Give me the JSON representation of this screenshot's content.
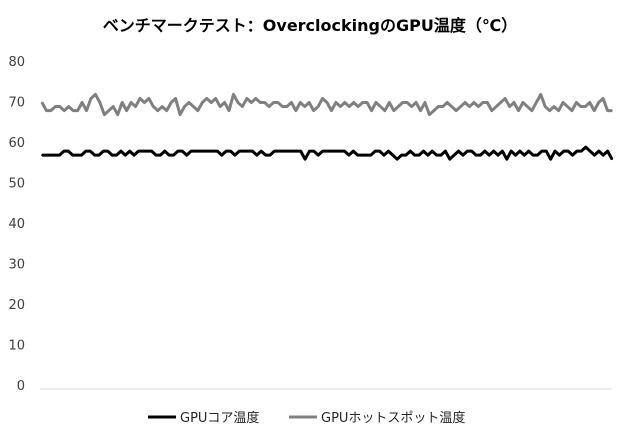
{
  "chart_data": {
    "type": "line",
    "title": "ベンチマークテスト：OverclockingのGPU温度（℃）",
    "xlabel": "",
    "ylabel": "",
    "ylim": [
      0,
      80
    ],
    "yticks": [
      0,
      10,
      20,
      30,
      40,
      50,
      60,
      70,
      80
    ],
    "grid": false,
    "legend": "bottom",
    "colors": [
      "#000000",
      "#808080"
    ],
    "series": [
      {
        "name": "GPUコア温度",
        "values": [
          57,
          57,
          57,
          57,
          57,
          58,
          58,
          57,
          57,
          57,
          58,
          58,
          57,
          57,
          58,
          58,
          57,
          57,
          58,
          57,
          58,
          57,
          58,
          58,
          58,
          58,
          57,
          57,
          58,
          57,
          57,
          58,
          58,
          57,
          58,
          58,
          58,
          58,
          58,
          58,
          58,
          57,
          58,
          58,
          57,
          58,
          58,
          58,
          58,
          57,
          58,
          57,
          57,
          58,
          58,
          58,
          58,
          58,
          58,
          58,
          56,
          58,
          58,
          57,
          58,
          58,
          58,
          58,
          58,
          58,
          57,
          58,
          57,
          57,
          57,
          57,
          58,
          58,
          57,
          58,
          57,
          56,
          57,
          57,
          58,
          57,
          57,
          58,
          57,
          58,
          57,
          57,
          58,
          56,
          57,
          58,
          57,
          58,
          58,
          57,
          57,
          58,
          57,
          58,
          57,
          58,
          56,
          58,
          57,
          58,
          57,
          58,
          57,
          57,
          58,
          58,
          56,
          58,
          57,
          58,
          58,
          57,
          58,
          58,
          59,
          58,
          57,
          58,
          57,
          58,
          56
        ]
      },
      {
        "name": "GPUホットスポット温度",
        "values": [
          70,
          68,
          68,
          69,
          69,
          68,
          69,
          68,
          68,
          70,
          68,
          71,
          72,
          70,
          67,
          68,
          69,
          67,
          70,
          68,
          70,
          69,
          71,
          70,
          71,
          69,
          68,
          69,
          68,
          70,
          71,
          67,
          69,
          70,
          69,
          68,
          70,
          71,
          70,
          71,
          69,
          70,
          68,
          72,
          70,
          69,
          71,
          70,
          71,
          70,
          70,
          69,
          70,
          70,
          69,
          69,
          70,
          68,
          70,
          69,
          70,
          68,
          69,
          71,
          70,
          68,
          70,
          69,
          70,
          69,
          70,
          69,
          70,
          70,
          68,
          70,
          69,
          68,
          70,
          68,
          69,
          70,
          70,
          69,
          70,
          68,
          70,
          67,
          68,
          69,
          69,
          70,
          69,
          68,
          69,
          70,
          69,
          70,
          69,
          70,
          70,
          68,
          69,
          70,
          71,
          69,
          70,
          68,
          70,
          69,
          68,
          70,
          72,
          69,
          68,
          69,
          68,
          70,
          69,
          68,
          70,
          69,
          69,
          70,
          68,
          70,
          71,
          68,
          68
        ]
      }
    ]
  }
}
